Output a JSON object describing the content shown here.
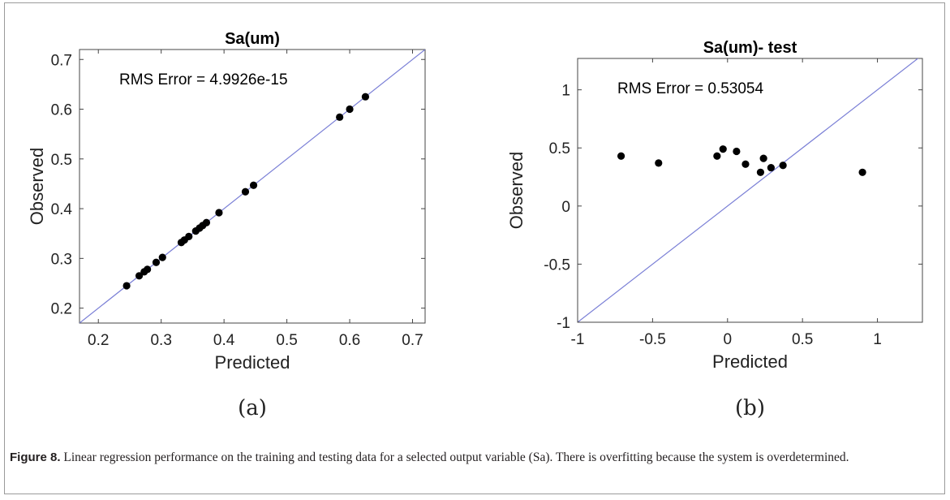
{
  "chart_data": [
    {
      "type": "scatter",
      "title": "Sa(um)",
      "xlabel": "Predicted",
      "ylabel": "Observed",
      "xlim": [
        0.17,
        0.72
      ],
      "ylim": [
        0.17,
        0.72
      ],
      "xticks": [
        0.2,
        0.3,
        0.4,
        0.5,
        0.6,
        0.7
      ],
      "yticks": [
        0.2,
        0.3,
        0.4,
        0.5,
        0.6,
        0.7
      ],
      "tick_labels": [
        "0.2",
        "0.3",
        "0.4",
        "0.5",
        "0.6",
        "0.7"
      ],
      "annotation": "RMS Error =  4.9926e-15",
      "reference_line": "y = x",
      "panel_label": "(a)",
      "series": [
        {
          "x": [
            0.245,
            0.265,
            0.273,
            0.278,
            0.292,
            0.302,
            0.332,
            0.337,
            0.344,
            0.355,
            0.361,
            0.366,
            0.372,
            0.392,
            0.434,
            0.447,
            0.584,
            0.6,
            0.625
          ],
          "y": [
            0.245,
            0.265,
            0.273,
            0.278,
            0.292,
            0.302,
            0.332,
            0.337,
            0.344,
            0.355,
            0.361,
            0.366,
            0.372,
            0.392,
            0.434,
            0.447,
            0.584,
            0.6,
            0.625
          ]
        }
      ]
    },
    {
      "type": "scatter",
      "title": "Sa(um)- test",
      "xlabel": "Predicted",
      "ylabel": "Observed",
      "xlim": [
        -1.0,
        1.3
      ],
      "ylim": [
        -1.0,
        1.27
      ],
      "xticks": [
        -1,
        -0.5,
        0,
        0.5,
        1
      ],
      "yticks": [
        -1,
        -0.5,
        0,
        0.5,
        1
      ],
      "xtick_labels": [
        "-1",
        "-0.5",
        "0",
        "0.5",
        "1"
      ],
      "ytick_labels": [
        "-1",
        "-0.5",
        "0",
        "0.5",
        "1"
      ],
      "annotation": "RMS Error =  0.53054",
      "reference_line": "y = x",
      "panel_label": "(b)",
      "series": [
        {
          "x": [
            -0.71,
            -0.46,
            -0.07,
            -0.03,
            0.06,
            0.12,
            0.22,
            0.24,
            0.29,
            0.37,
            0.9
          ],
          "y": [
            0.43,
            0.37,
            0.43,
            0.49,
            0.47,
            0.36,
            0.29,
            0.41,
            0.33,
            0.35,
            0.29
          ]
        }
      ]
    }
  ],
  "style": {
    "marker_color": "#000000",
    "reference_line_color": "#7a7fd6",
    "axis_color": "#444444"
  },
  "caption": {
    "label": "Figure 8.",
    "text": " Linear regression performance on the training and testing data for a selected output variable (Sa). There is overfitting because the system is overdetermined."
  }
}
